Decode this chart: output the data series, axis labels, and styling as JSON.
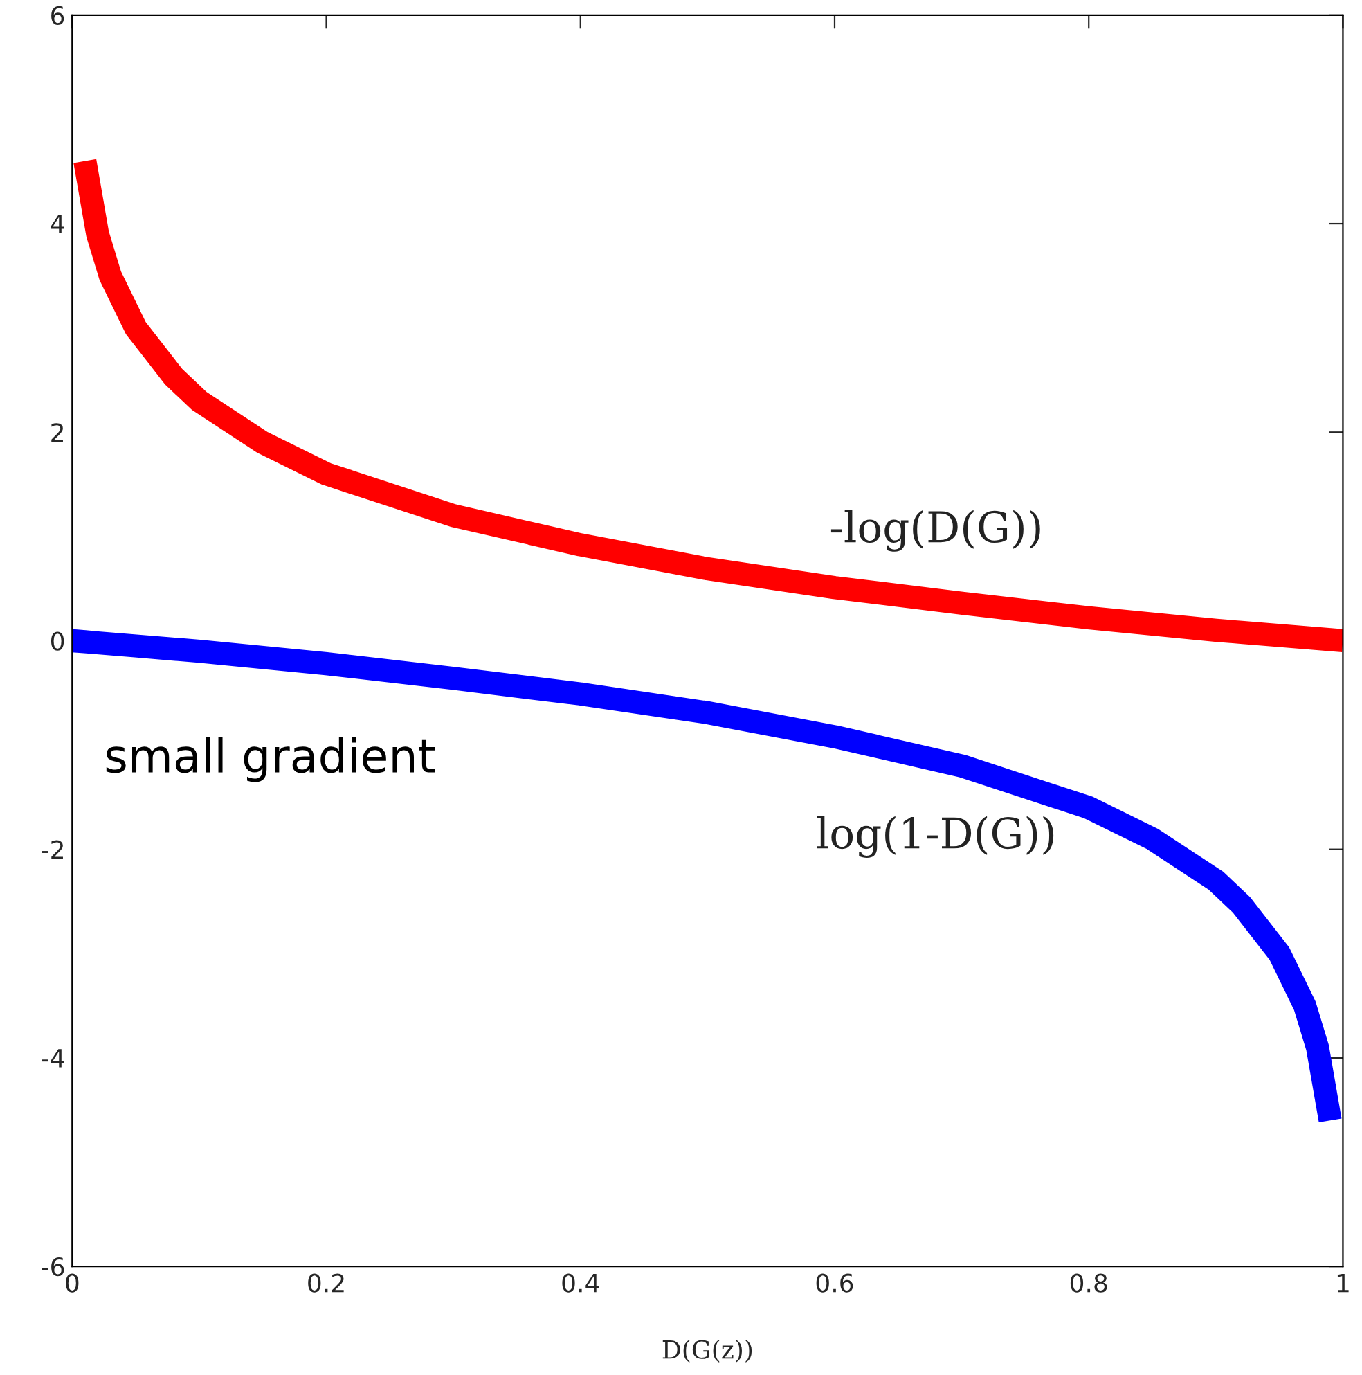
{
  "chart_data": {
    "type": "line",
    "xlabel": "D(G(z))",
    "x": [
      0.0,
      0.01,
      0.02,
      0.03,
      0.05,
      0.08,
      0.1,
      0.15,
      0.2,
      0.3,
      0.4,
      0.5,
      0.6,
      0.7,
      0.8,
      0.85,
      0.9,
      0.92,
      0.95,
      0.97,
      0.98,
      0.99,
      1.0
    ],
    "series": [
      {
        "name": "-log(D(G))",
        "color": "#ff0000",
        "values": [
          null,
          4.6,
          3.9,
          3.5,
          3.0,
          2.53,
          2.3,
          1.9,
          1.6,
          1.2,
          0.92,
          0.69,
          0.51,
          0.36,
          0.22,
          0.16,
          0.1,
          0.08,
          0.05,
          0.03,
          0.02,
          0.01,
          0.0
        ]
      },
      {
        "name": "log(1-D(G))",
        "color": "#0000ff",
        "values": [
          0.0,
          -0.01,
          -0.02,
          -0.03,
          -0.05,
          -0.08,
          -0.1,
          -0.16,
          -0.22,
          -0.36,
          -0.51,
          -0.69,
          -0.92,
          -1.2,
          -1.6,
          -1.9,
          -2.3,
          -2.53,
          -3.0,
          -3.5,
          -3.9,
          -4.6,
          null
        ]
      }
    ],
    "annotations": [
      "small gradient"
    ],
    "xlim": [
      0,
      1
    ],
    "ylim": [
      -6,
      6
    ],
    "xticks": [
      0,
      0.2,
      0.4,
      0.6,
      0.8,
      1
    ],
    "yticks": [
      -6,
      -4,
      -2,
      0,
      2,
      4,
      6
    ],
    "grid": false,
    "legend": false,
    "marker": "none",
    "line_style": "solid"
  }
}
